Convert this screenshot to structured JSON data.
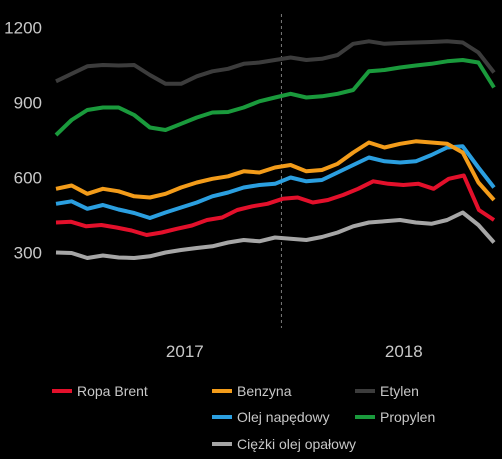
{
  "chart_data": {
    "type": "line",
    "y_ticks": [
      300,
      600,
      900,
      1200
    ],
    "ylim": [
      230,
      1230
    ],
    "x_points": 35,
    "x_tick_labels": [
      {
        "label": "2017",
        "at": 10
      },
      {
        "label": "2018",
        "at": 27
      }
    ],
    "year_divider_at": 17.5,
    "series": [
      {
        "name": "Ropa Brent",
        "color": "#e3102b",
        "values": [
          420,
          423,
          405,
          410,
          400,
          388,
          370,
          380,
          395,
          408,
          430,
          440,
          470,
          485,
          495,
          515,
          520,
          500,
          510,
          530,
          555,
          585,
          575,
          570,
          575,
          555,
          595,
          608,
          470,
          430
        ]
      },
      {
        "name": "Benzyna",
        "color": "#f39c1a",
        "values": [
          555,
          568,
          535,
          555,
          545,
          525,
          520,
          535,
          560,
          580,
          595,
          605,
          625,
          620,
          640,
          650,
          625,
          630,
          655,
          700,
          740,
          720,
          735,
          745,
          740,
          735,
          700,
          580,
          510
        ]
      },
      {
        "name": "Olej napędowy",
        "color": "#2b9fe0",
        "values": [
          495,
          505,
          475,
          490,
          472,
          458,
          438,
          460,
          480,
          500,
          525,
          540,
          560,
          570,
          575,
          600,
          585,
          590,
          620,
          650,
          680,
          665,
          660,
          665,
          690,
          720,
          725,
          640,
          560
        ]
      },
      {
        "name": "Etylen",
        "color": "#3c3c3c",
        "values": [
          985,
          1015,
          1045,
          1050,
          1048,
          1050,
          1010,
          975,
          975,
          1005,
          1025,
          1035,
          1055,
          1060,
          1070,
          1080,
          1070,
          1075,
          1090,
          1135,
          1145,
          1135,
          1138,
          1140,
          1142,
          1145,
          1140,
          1100,
          1020
        ]
      },
      {
        "name": "Propylen",
        "color": "#1a9a3c",
        "values": [
          770,
          830,
          870,
          880,
          880,
          850,
          800,
          790,
          815,
          840,
          860,
          862,
          880,
          905,
          920,
          935,
          920,
          925,
          935,
          950,
          1025,
          1030,
          1040,
          1048,
          1055,
          1065,
          1070,
          1060,
          960
        ]
      },
      {
        "name": "Ciężki olej opałowy",
        "color": "#a6a6a6",
        "values": [
          300,
          298,
          278,
          288,
          280,
          278,
          285,
          300,
          310,
          318,
          325,
          340,
          350,
          345,
          360,
          355,
          350,
          362,
          380,
          405,
          420,
          425,
          430,
          420,
          415,
          430,
          460,
          410,
          340
        ]
      }
    ],
    "legend": {
      "placement": "bottom",
      "order": [
        "Ropa Brent",
        "Benzyna",
        "Etylen",
        "Olej napędowy",
        "Propylen",
        "Ciężki olej opałowy"
      ]
    },
    "grid": false,
    "title": "",
    "xlabel": "",
    "ylabel": ""
  }
}
